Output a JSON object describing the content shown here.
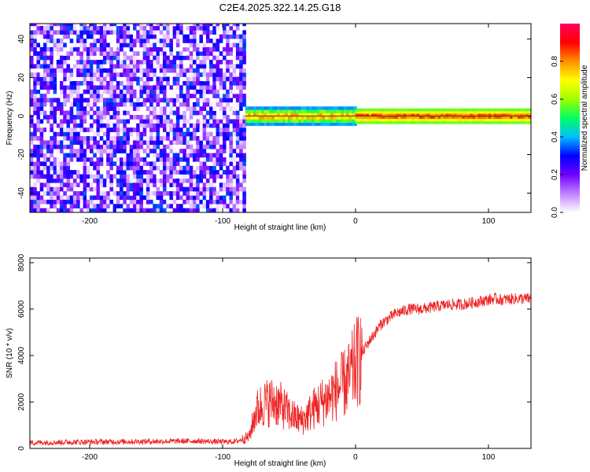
{
  "title": "C2E4.2025.322.14.25.G18",
  "chart_data": [
    {
      "type": "heatmap",
      "xlabel": "Height of straight line (km)",
      "ylabel": "Frequency (Hz)",
      "xlim": [
        -245,
        132
      ],
      "ylim": [
        -50,
        48
      ],
      "x_ticks": [
        -200,
        -100,
        0,
        100
      ],
      "y_ticks": [
        -40,
        -20,
        0,
        20,
        40
      ],
      "colorbar": {
        "label": "Normalized spectral amplitude",
        "range": [
          0,
          1
        ],
        "ticks": [
          0.0,
          0.2,
          0.4,
          0.6,
          0.8
        ],
        "colors": [
          "#ffffff",
          "#c080ff",
          "#7000ff",
          "#0000ff",
          "#00c0ff",
          "#00ff60",
          "#a0ff00",
          "#ffff00",
          "#ff9000",
          "#ff0000",
          "#ff0060"
        ]
      },
      "regions": [
        {
          "x_range": [
            -245,
            -83
          ],
          "freq_range": [
            -50,
            48
          ],
          "amplitude_range": [
            0.0,
            0.35
          ],
          "description_level": "noise"
        },
        {
          "x_range": [
            -83,
            0
          ],
          "freq_center": 0,
          "freq_width": 5,
          "amplitude_range": [
            0.3,
            0.9
          ]
        },
        {
          "x_range": [
            0,
            132
          ],
          "freq_center": 0,
          "freq_width": 4,
          "amplitude_range": [
            0.5,
            0.95
          ]
        }
      ],
      "grid": false
    },
    {
      "type": "line",
      "xlabel": "Height of straight line (km)",
      "ylabel": "SNR (10 * v/v)",
      "xlim": [
        -245,
        132
      ],
      "ylim": [
        0,
        8200
      ],
      "x_ticks": [
        -200,
        -100,
        0,
        100
      ],
      "y_ticks": [
        0,
        2000,
        4000,
        6000,
        8000
      ],
      "series": [
        {
          "color": "#ee2222",
          "x": [
            -245,
            -200,
            -150,
            -120,
            -100,
            -90,
            -80,
            -75,
            -70,
            -65,
            -60,
            -55,
            -50,
            -45,
            -40,
            -35,
            -30,
            -25,
            -20,
            -15,
            -10,
            -5,
            0,
            10,
            20,
            30,
            40,
            50,
            60,
            70,
            80,
            90,
            100,
            105,
            110,
            120,
            132
          ],
          "y": [
            250,
            280,
            300,
            320,
            280,
            300,
            500,
            1600,
            1900,
            2000,
            2000,
            1800,
            1500,
            1300,
            1200,
            1500,
            1800,
            2000,
            2200,
            2500,
            2700,
            3000,
            3600,
            4600,
            5400,
            5800,
            6000,
            6000,
            6100,
            6200,
            6200,
            6300,
            6400,
            6450,
            6400,
            6450,
            6450
          ]
        }
      ],
      "grid": false
    }
  ]
}
